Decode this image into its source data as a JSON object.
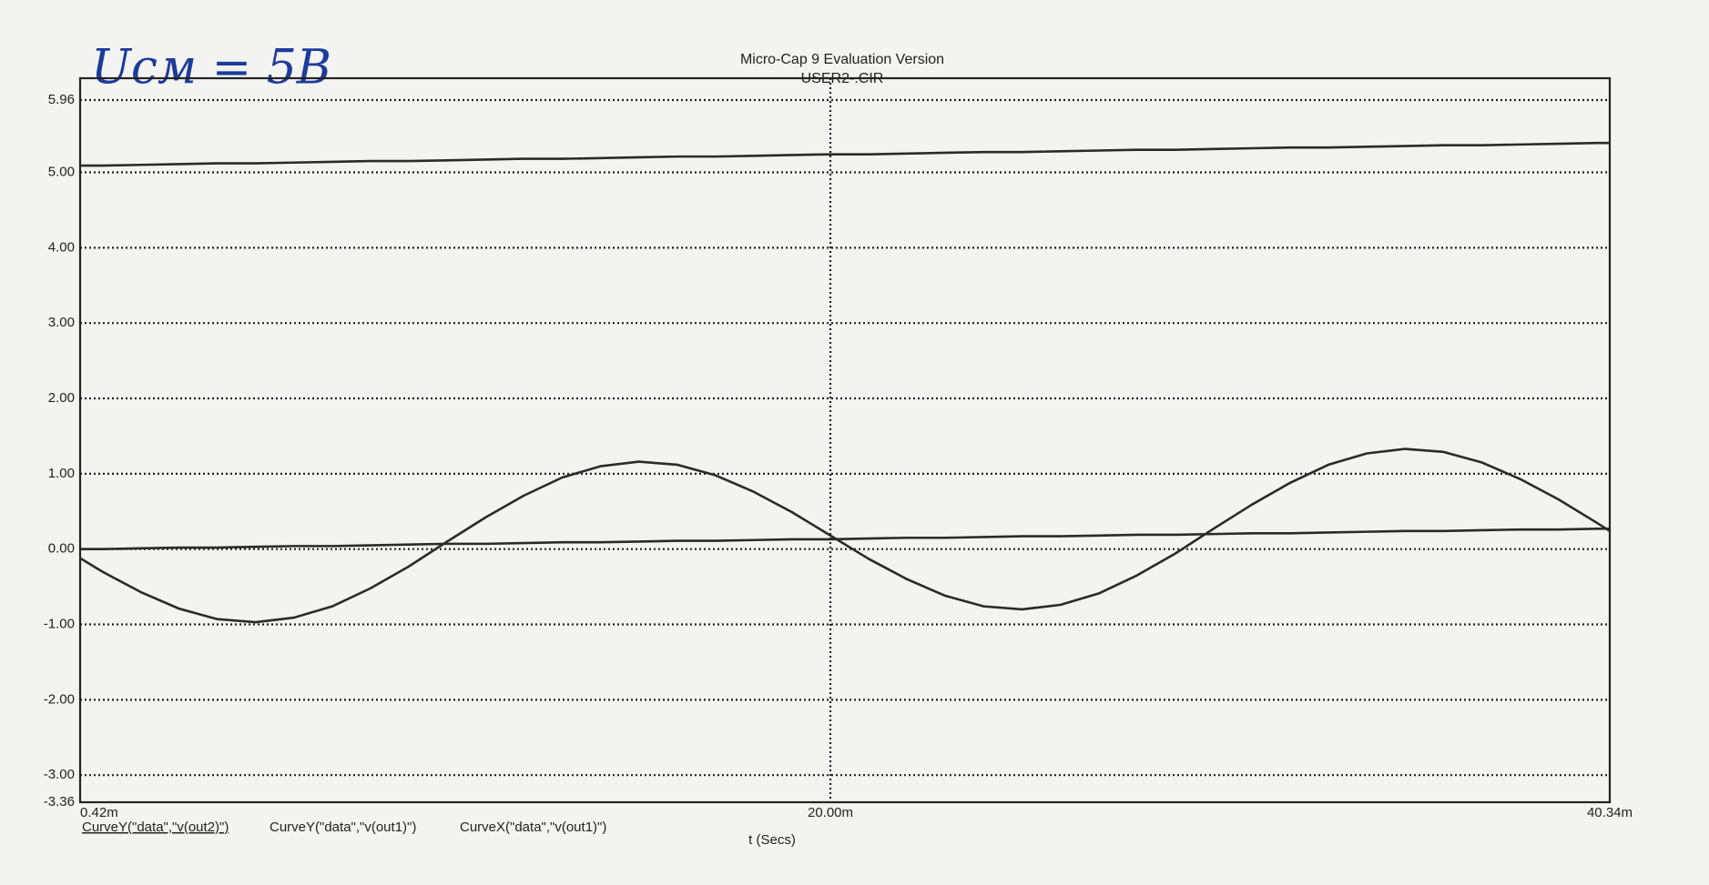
{
  "chart_data": {
    "type": "line",
    "title": "Micro-Cap 9 Evaluation Version",
    "subtitle": "USER2-.CIR",
    "annotation": "Uсм = 5В",
    "x_label": "t (Secs)",
    "xlim": [
      0.42,
      40.34
    ],
    "xticks": [
      {
        "value": 0.42,
        "label": "0.42m"
      },
      {
        "value": 20,
        "label": "20.00m"
      },
      {
        "value": 40.34,
        "label": "40.34m"
      }
    ],
    "ylim": [
      -3.36,
      5.96
    ],
    "yticks": [
      5.96,
      {
        "value": 5,
        "label": "5.00"
      },
      {
        "value": 4,
        "label": "4.00"
      },
      {
        "value": 3,
        "label": "3.00"
      },
      {
        "value": 2,
        "label": "2.00"
      },
      {
        "value": 1,
        "label": "1.00"
      },
      {
        "value": 0,
        "label": "0.00"
      },
      {
        "value": -1,
        "label": "-1.00"
      },
      {
        "value": -2,
        "label": "-2.00"
      },
      {
        "value": -3,
        "label": "-3.00"
      },
      -3.36
    ],
    "grid": true,
    "x": [
      0.42,
      1,
      2,
      3,
      4,
      5,
      6,
      7,
      8,
      9,
      10,
      11,
      12,
      13,
      14,
      15,
      16,
      17,
      18,
      19,
      20,
      21,
      22,
      23,
      24,
      25,
      26,
      27,
      28,
      29,
      30,
      31,
      32,
      33,
      34,
      35,
      36,
      37,
      38,
      39,
      40,
      40.34
    ],
    "series": [
      {
        "name": "CurveY(\"data\",\"v(out2)\")",
        "color": "#2a2a2a",
        "values": [
          5.09,
          5.09,
          5.1,
          5.11,
          5.12,
          5.12,
          5.13,
          5.14,
          5.15,
          5.15,
          5.16,
          5.17,
          5.18,
          5.18,
          5.19,
          5.2,
          5.21,
          5.21,
          5.22,
          5.23,
          5.24,
          5.24,
          5.25,
          5.26,
          5.27,
          5.27,
          5.28,
          5.29,
          5.3,
          5.3,
          5.31,
          5.32,
          5.33,
          5.33,
          5.34,
          5.35,
          5.36,
          5.36,
          5.37,
          5.38,
          5.39,
          5.39
        ]
      },
      {
        "name": "CurveY(\"data\",\"v(out1)\")",
        "color": "#2a2a2a",
        "values": [
          -0.12,
          -0.3,
          -0.57,
          -0.79,
          -0.93,
          -0.97,
          -0.91,
          -0.76,
          -0.52,
          -0.23,
          0.1,
          0.42,
          0.71,
          0.95,
          1.1,
          1.16,
          1.12,
          0.98,
          0.76,
          0.49,
          0.18,
          -0.13,
          -0.4,
          -0.62,
          -0.76,
          -0.8,
          -0.74,
          -0.59,
          -0.35,
          -0.06,
          0.27,
          0.59,
          0.88,
          1.12,
          1.27,
          1.33,
          1.29,
          1.15,
          0.93,
          0.66,
          0.35,
          0.24
        ]
      },
      {
        "name": "CurveX(\"data\",\"v(out1)\")",
        "color": "#2a2a2a",
        "values": [
          0.0,
          0.0,
          0.01,
          0.02,
          0.02,
          0.03,
          0.04,
          0.04,
          0.05,
          0.06,
          0.07,
          0.07,
          0.08,
          0.09,
          0.09,
          0.1,
          0.11,
          0.11,
          0.12,
          0.13,
          0.13,
          0.14,
          0.15,
          0.15,
          0.16,
          0.17,
          0.17,
          0.18,
          0.19,
          0.19,
          0.2,
          0.21,
          0.21,
          0.22,
          0.23,
          0.24,
          0.24,
          0.25,
          0.26,
          0.26,
          0.27,
          0.27
        ]
      }
    ]
  }
}
